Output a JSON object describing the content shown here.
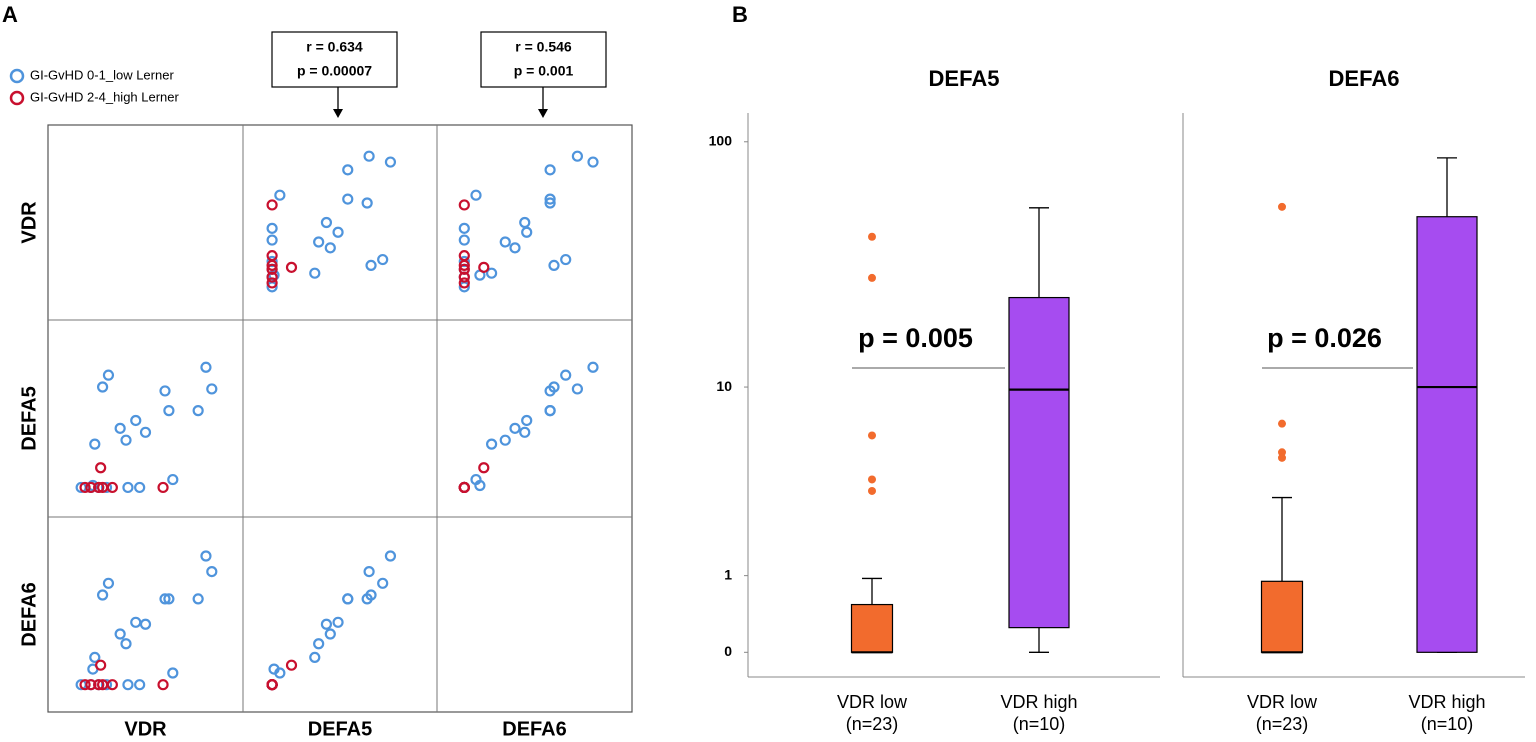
{
  "chart_data": [
    {
      "type": "scatter_matrix",
      "panel": "A",
      "variables": [
        "VDR",
        "DEFA5",
        "DEFA6"
      ],
      "xlim": [
        0,
        100
      ],
      "ylim": [
        0,
        100
      ],
      "series": [
        {
          "name": "GI-GvHD 0-1_low Lerner",
          "color": "#4f94dc",
          "values": [
            [
              64,
              19,
              20
            ],
            [
              77,
              54,
              58
            ],
            [
              84,
              65,
              72
            ],
            [
              81,
              76,
              80
            ],
            [
              62,
              54,
              58
            ],
            [
              60,
              64,
              58
            ],
            [
              50,
              43,
              45
            ],
            [
              45,
              49,
              46
            ],
            [
              40,
              39,
              35
            ],
            [
              37,
              45,
              40
            ],
            [
              47,
              15,
              14
            ],
            [
              41,
              15,
              14
            ],
            [
              30,
              15,
              14
            ],
            [
              26,
              15,
              14
            ],
            [
              22,
              15,
              14
            ],
            [
              17,
              15,
              14
            ],
            [
              24,
              37,
              28
            ],
            [
              28,
              66,
              60
            ],
            [
              31,
              72,
              66
            ],
            [
              23,
              16,
              22
            ]
          ]
        },
        {
          "name": "GI-GvHD 2-4_high Lerner",
          "color": "#c8102e",
          "values": [
            [
              59,
              15,
              14
            ],
            [
              33,
              15,
              14
            ],
            [
              28,
              15,
              14
            ],
            [
              22,
              15,
              14
            ],
            [
              19,
              15,
              14
            ],
            [
              27,
              25,
              24
            ],
            [
              26,
              15,
              14
            ]
          ]
        }
      ],
      "annotations": [
        {
          "r": "r = 0.634",
          "p": "p = 0.00007"
        },
        {
          "r": "r = 0.546",
          "p": "p = 0.001"
        }
      ]
    },
    {
      "type": "box",
      "panel": "B",
      "title": "DEFA5",
      "scale": "log1p",
      "categories": [
        "VDR low",
        "VDR high"
      ],
      "n_labels": [
        "(n=23)",
        "(n=10)"
      ],
      "colors": [
        "#f26b2d",
        "#a64cf0"
      ],
      "ylim": [
        -0.2,
        130
      ],
      "yticks": [
        0,
        1,
        10,
        100
      ],
      "boxes": [
        {
          "min": 0,
          "q1": 0,
          "median": 0,
          "q3": 0.54,
          "max": 0.95,
          "outliers": [
            41.8,
            28.5,
            6.1,
            3.77,
            3.3
          ]
        },
        {
          "min": 0,
          "q1": 0.25,
          "median": 9.75,
          "q3": 23.7,
          "max": 54.6,
          "outliers": []
        }
      ],
      "p_label": "p = 0.005"
    },
    {
      "type": "box",
      "title": "DEFA6",
      "scale": "log1p",
      "categories": [
        "VDR low",
        "VDR high"
      ],
      "n_labels": [
        "(n=23)",
        "(n=10)"
      ],
      "colors": [
        "#f26b2d",
        "#a64cf0"
      ],
      "ylim": [
        -0.2,
        130
      ],
      "boxes": [
        {
          "min": 0,
          "q1": 0,
          "median": 0,
          "q3": 0.9,
          "max": 3.05,
          "outliers": [
            55.1,
            6.9,
            5.1,
            4.8
          ]
        },
        {
          "min": 0,
          "q1": 0,
          "median": 10.0,
          "q3": 50.3,
          "max": 86.3,
          "outliers": []
        }
      ],
      "p_label": "p = 0.026"
    }
  ]
}
